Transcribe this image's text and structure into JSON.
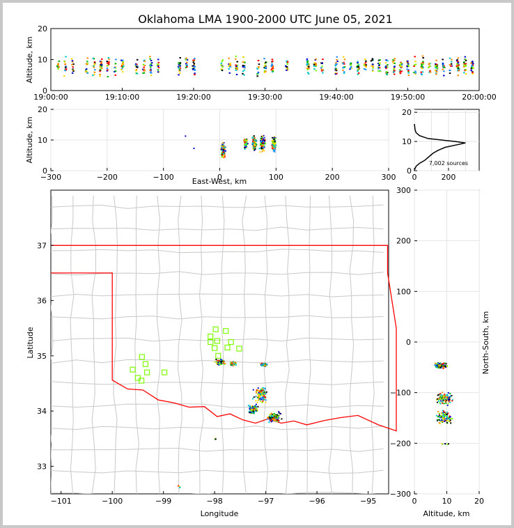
{
  "title": "Oklahoma LMA 1900-2000 UTC June 05, 2021",
  "colors": {
    "border": "#ff0000",
    "county": "#c8c8c8",
    "station": "#7cfc00",
    "frame_bg": "#c8c8c8"
  },
  "chart_data": [
    {
      "id": "time-altitude",
      "type": "scatter",
      "ylabel": "Altitude, km",
      "ylim": [
        0,
        20
      ],
      "yticks": [
        "0",
        "10",
        "20"
      ],
      "xlim_minutes": [
        0,
        60
      ],
      "xticks": [
        "19:00:00",
        "19:10:00",
        "19:20:00",
        "19:30:00",
        "19:40:00",
        "19:50:00",
        "20:00:00"
      ],
      "clusters_minutes": [
        1,
        2,
        3,
        5,
        6,
        7,
        8,
        9,
        10,
        12,
        13,
        14,
        15,
        18,
        19,
        20,
        24,
        25,
        26,
        27,
        29,
        30,
        31,
        33,
        36,
        37,
        38,
        40,
        41,
        42,
        43,
        44,
        45,
        46,
        47,
        48,
        49,
        50,
        51,
        52,
        53,
        54,
        55,
        56,
        57,
        58,
        59
      ]
    },
    {
      "id": "eastwest-altitude",
      "type": "scatter",
      "xlabel": "East-West, km",
      "ylabel": "Altitude, km",
      "xlim": [
        -300,
        300
      ],
      "ylim": [
        0,
        20
      ],
      "xticks": [
        "−300",
        "−200",
        "−100",
        "0",
        "100",
        "200",
        "300"
      ],
      "yticks": [
        "0",
        "10",
        "20"
      ],
      "clusters": [
        [
          5,
          7,
          4
        ],
        [
          45,
          9,
          3
        ],
        [
          60,
          9,
          4
        ],
        [
          75,
          9,
          5
        ],
        [
          95,
          9,
          4
        ]
      ]
    },
    {
      "id": "altitude-histogram",
      "type": "line",
      "annotation": "7,002 sources",
      "xlim": [
        0,
        380
      ],
      "ylim": [
        0,
        21
      ],
      "xticks": [
        "0",
        "200"
      ],
      "yticks": [
        "0",
        "10",
        "20"
      ],
      "profile": [
        [
          0,
          0
        ],
        [
          2,
          0.5
        ],
        [
          10,
          1.5
        ],
        [
          30,
          2.5
        ],
        [
          60,
          3.5
        ],
        [
          90,
          5
        ],
        [
          110,
          6
        ],
        [
          140,
          7
        ],
        [
          180,
          8
        ],
        [
          260,
          9
        ],
        [
          300,
          9.5
        ],
        [
          240,
          10
        ],
        [
          160,
          10.5
        ],
        [
          80,
          11
        ],
        [
          30,
          12
        ],
        [
          10,
          13
        ],
        [
          4,
          14
        ],
        [
          2,
          15
        ],
        [
          0,
          16
        ]
      ]
    },
    {
      "id": "plan-view-map",
      "type": "scatter",
      "xlabel": "Longitude",
      "ylabel": "Latitude",
      "xlim": [
        -101.2,
        -94.6
      ],
      "ylim": [
        32.5,
        38.0
      ],
      "xticks": [
        "−101",
        "−100",
        "−99",
        "−98",
        "−97",
        "−96",
        "−95"
      ],
      "yticks": [
        "33",
        "34",
        "35",
        "36",
        "37"
      ],
      "stations": [
        [
          -97.98,
          35.48
        ],
        [
          -97.78,
          35.45
        ],
        [
          -98.08,
          35.35
        ],
        [
          -98.08,
          35.25
        ],
        [
          -97.95,
          35.27
        ],
        [
          -97.68,
          35.25
        ],
        [
          -98.0,
          35.14
        ],
        [
          -97.75,
          35.15
        ],
        [
          -97.52,
          35.13
        ],
        [
          -97.93,
          35.0
        ],
        [
          -99.42,
          34.98
        ],
        [
          -99.35,
          34.85
        ],
        [
          -99.6,
          34.75
        ],
        [
          -99.32,
          34.7
        ],
        [
          -98.98,
          34.7
        ],
        [
          -99.5,
          34.6
        ],
        [
          -99.43,
          34.55
        ]
      ],
      "clusters": [
        [
          -97.9,
          34.9,
          0.12,
          0.06
        ],
        [
          -97.65,
          34.87,
          0.08,
          0.04
        ],
        [
          -97.05,
          34.85,
          0.08,
          0.03
        ],
        [
          -97.1,
          34.3,
          0.18,
          0.18
        ],
        [
          -97.25,
          34.05,
          0.12,
          0.1
        ],
        [
          -96.85,
          33.9,
          0.18,
          0.12
        ],
        [
          -98.0,
          33.5,
          0.02,
          0.02
        ],
        [
          -98.7,
          32.65,
          0.03,
          0.05
        ]
      ]
    },
    {
      "id": "altitude-northsouth",
      "type": "scatter",
      "xlabel": "Altitude, km",
      "ylabel": "North-South, km",
      "xlim": [
        0,
        20
      ],
      "ylim": [
        -300,
        300
      ],
      "xticks": [
        "0",
        "10",
        "20"
      ],
      "yticks": [
        "−300",
        "−200",
        "−100",
        "0",
        "100",
        "200",
        "300"
      ],
      "clusters": [
        [
          8,
          -45,
          3,
          8
        ],
        [
          9,
          -110,
          3,
          15
        ],
        [
          9,
          -148,
          3,
          18
        ],
        [
          9,
          -200,
          2,
          2
        ]
      ]
    }
  ]
}
